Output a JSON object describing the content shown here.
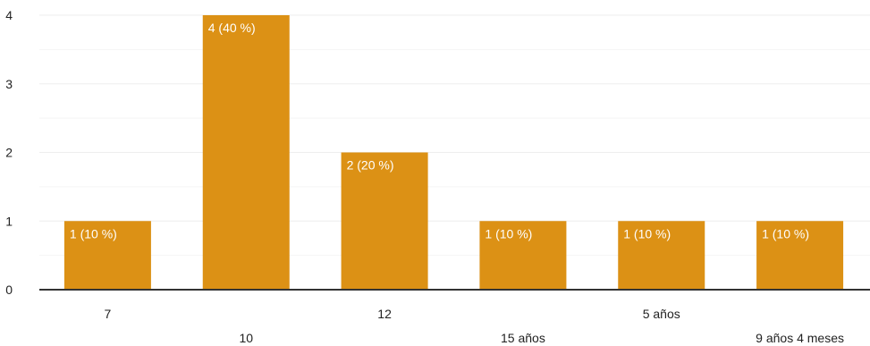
{
  "chart_data": {
    "type": "bar",
    "categories": [
      "7",
      "10",
      "12",
      "15 años",
      "5 años",
      "9 años 4 meses"
    ],
    "values": [
      1,
      4,
      2,
      1,
      1,
      1
    ],
    "data_labels": [
      "1 (10 %)",
      "4 (40 %)",
      "2 (20 %)",
      "1 (10 %)",
      "1 (10 %)",
      "1 (10 %)"
    ],
    "yticks": [
      "0",
      "1",
      "2",
      "3",
      "4"
    ],
    "ylim": [
      0,
      4
    ],
    "grid": true,
    "colors": {
      "bar": "#dc9115",
      "axis": "#333333",
      "gridline": "#eeeeee",
      "minor_gridline": "#f5f5f5"
    }
  }
}
